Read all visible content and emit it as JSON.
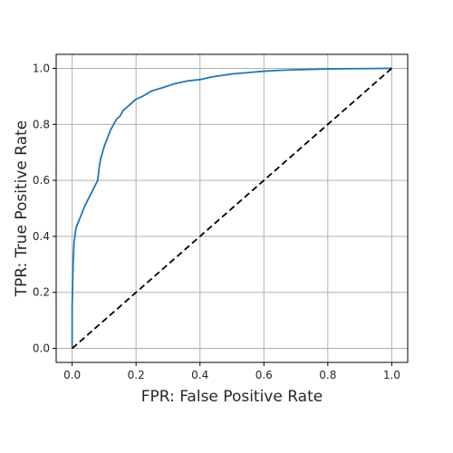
{
  "chart_data": {
    "type": "line",
    "title": "",
    "xlabel": "FPR: False Positive Rate",
    "ylabel": "TPR: True Positive Rate",
    "xlim": [
      -0.05,
      1.05
    ],
    "ylim": [
      -0.05,
      1.05
    ],
    "grid": true,
    "xticks": [
      0.0,
      0.2,
      0.4,
      0.6,
      0.8,
      1.0
    ],
    "yticks": [
      0.0,
      0.2,
      0.4,
      0.6,
      0.8,
      1.0
    ],
    "xtick_labels": [
      "0.0",
      "0.2",
      "0.4",
      "0.6",
      "0.8",
      "1.0"
    ],
    "ytick_labels": [
      "0.0",
      "0.2",
      "0.4",
      "0.6",
      "0.8",
      "1.0"
    ],
    "series": [
      {
        "style": "solid",
        "color": "#1f77b4",
        "x": [
          0.0,
          0.0,
          0.003,
          0.006,
          0.012,
          0.04,
          0.08,
          0.085,
          0.09,
          0.1,
          0.11,
          0.12,
          0.13,
          0.14,
          0.15,
          0.16,
          0.18,
          0.2,
          0.22,
          0.25,
          0.28,
          0.32,
          0.36,
          0.4,
          0.44,
          0.5,
          0.55,
          0.6,
          0.65,
          0.7,
          0.8,
          0.9,
          1.0
        ],
        "y": [
          0.0,
          0.15,
          0.3,
          0.38,
          0.43,
          0.51,
          0.6,
          0.65,
          0.68,
          0.72,
          0.75,
          0.78,
          0.8,
          0.82,
          0.83,
          0.85,
          0.87,
          0.89,
          0.9,
          0.92,
          0.93,
          0.945,
          0.955,
          0.96,
          0.97,
          0.98,
          0.985,
          0.99,
          0.993,
          0.995,
          0.998,
          0.999,
          1.0
        ]
      },
      {
        "style": "dashed",
        "color": "#000000",
        "x": [
          0.0,
          1.0
        ],
        "y": [
          0.0,
          1.0
        ]
      }
    ]
  }
}
